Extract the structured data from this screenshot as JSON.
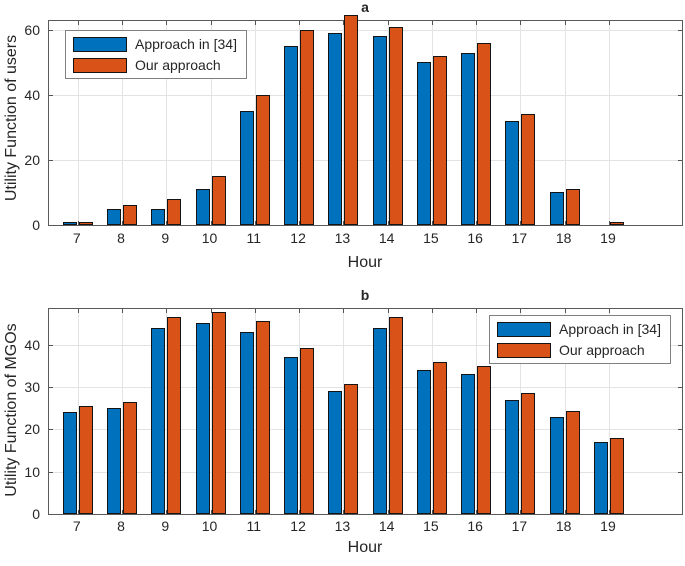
{
  "figure": {
    "background": "#ffffff",
    "axis_color": "#5a5a5a",
    "grid_color": "#e3e3e3",
    "text_color": "#262626"
  },
  "chart_data": [
    {
      "type": "bar",
      "panel_label": "a",
      "xlabel": "Hour",
      "ylabel": "Utility Function of users",
      "categories": [
        7,
        8,
        9,
        10,
        11,
        12,
        13,
        14,
        15,
        16,
        17,
        18,
        19
      ],
      "series": [
        {
          "name": "Approach in [34]",
          "color": "#0072BD",
          "values": [
            1,
            5,
            5,
            11,
            35,
            55,
            59,
            58,
            50,
            53,
            32,
            10,
            0
          ]
        },
        {
          "name": "Our approach",
          "color": "#D95319",
          "values": [
            1,
            6,
            8,
            15,
            40,
            60,
            64.5,
            61,
            52,
            56,
            34,
            11,
            1
          ]
        }
      ],
      "ylim": [
        0,
        62.7
      ],
      "yticks": [
        0,
        20,
        40,
        60
      ],
      "grid": true,
      "legend_position": "northwest"
    },
    {
      "type": "bar",
      "panel_label": "b",
      "xlabel": "Hour",
      "ylabel": "Utility Function of MGOs",
      "categories": [
        7,
        8,
        9,
        10,
        11,
        12,
        13,
        14,
        15,
        16,
        17,
        18,
        19
      ],
      "series": [
        {
          "name": "Approach in [34]",
          "color": "#0072BD",
          "values": [
            24,
            25,
            44,
            45,
            43,
            37,
            29,
            44,
            34,
            33,
            27,
            23,
            17
          ]
        },
        {
          "name": "Our approach",
          "color": "#D95319",
          "values": [
            25.4,
            26.4,
            46.5,
            47.6,
            45.5,
            39.1,
            30.7,
            46.5,
            35.9,
            34.9,
            28.5,
            24.3,
            18
          ]
        }
      ],
      "ylim": [
        0,
        48.4
      ],
      "yticks": [
        0,
        10,
        20,
        30,
        40
      ],
      "grid": true,
      "legend_position": "northeast"
    }
  ]
}
